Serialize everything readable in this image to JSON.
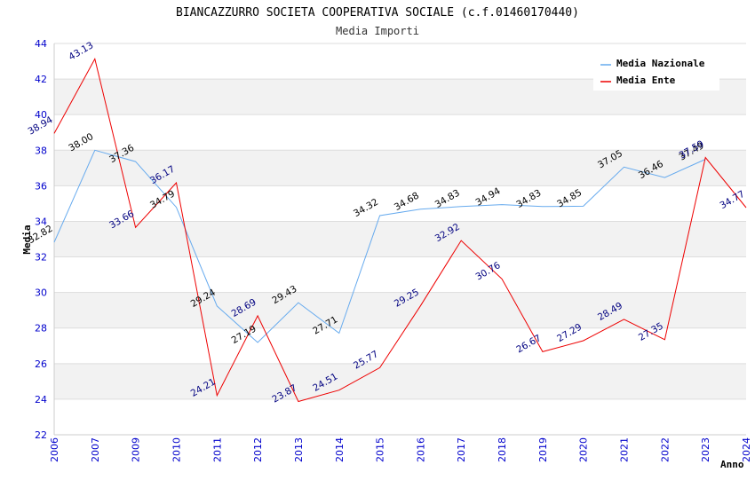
{
  "chart_data": {
    "type": "line",
    "title": "BIANCAZZURRO SOCIETA COOPERATIVA SOCIALE (c.f.01460170440)",
    "subtitle": "Media Importi",
    "xlabel": "Anno",
    "ylabel": "Media",
    "ylim": [
      22,
      44
    ],
    "yticks": [
      "22",
      "24",
      "26",
      "28",
      "30",
      "32",
      "34",
      "36",
      "38",
      "40",
      "42",
      "44"
    ],
    "categories": [
      "2006",
      "2007",
      "2009",
      "2010",
      "2011",
      "2012",
      "2013",
      "2014",
      "2015",
      "2016",
      "2017",
      "2018",
      "2019",
      "2020",
      "2021",
      "2022",
      "2023",
      "2024"
    ],
    "grid": true,
    "legend_position": "top-right",
    "series": [
      {
        "name": "Media Nazionale",
        "color": "#66aaee",
        "values": [
          32.82,
          38.0,
          37.36,
          34.79,
          29.24,
          27.19,
          29.43,
          27.71,
          34.32,
          34.68,
          34.83,
          34.94,
          34.83,
          34.85,
          37.05,
          36.46,
          37.49,
          null
        ],
        "labels": [
          "32.82",
          "38.00",
          "37.36",
          "34.79",
          "29.24",
          "27.19",
          "29.43",
          "27.71",
          "34.32",
          "34.68",
          "34.83",
          "34.94",
          "34.83",
          "34.85",
          "37.05",
          "36.46",
          "37.49",
          ""
        ]
      },
      {
        "name": "Media Ente",
        "color": "#ee0000",
        "values": [
          38.94,
          43.13,
          33.66,
          36.17,
          24.21,
          28.69,
          23.87,
          24.51,
          25.77,
          29.25,
          32.92,
          30.76,
          26.67,
          27.29,
          28.49,
          27.35,
          37.59,
          34.77
        ],
        "labels": [
          "38.94",
          "43.13",
          "33.66",
          "36.17",
          "24.21",
          "28.69",
          "23.87",
          "24.51",
          "25.77",
          "29.25",
          "32.92",
          "30.76",
          "26.67",
          "27.29",
          "28.49",
          "27.35",
          "37.59",
          "34.77"
        ]
      }
    ]
  }
}
